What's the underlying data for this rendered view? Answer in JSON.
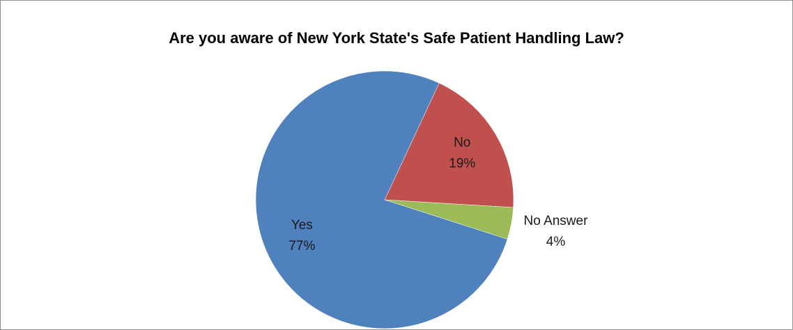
{
  "chart_data": {
    "type": "pie",
    "title": "Are you aware of New York State's Safe Patient Handling Law?",
    "categories": [
      "No",
      "No Answer",
      "Yes"
    ],
    "values": [
      19,
      4,
      77
    ],
    "value_labels": [
      "19%",
      "4%",
      "77%"
    ],
    "colors": [
      "#c0504d",
      "#9bbb59",
      "#4f81bd"
    ]
  }
}
